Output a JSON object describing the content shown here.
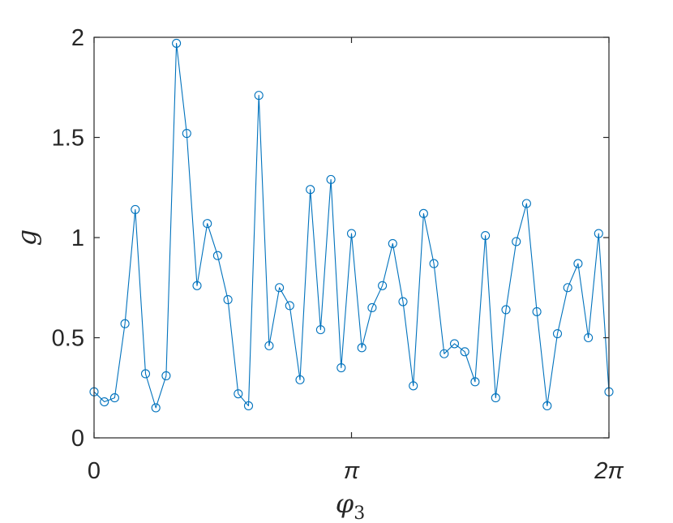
{
  "chart_data": {
    "type": "line",
    "marker": "circle",
    "color": "#0072BD",
    "xlabel": "φ",
    "xlabel_subscript": "3",
    "ylabel": "g",
    "xlim": [
      0,
      6.283185307
    ],
    "ylim": [
      0,
      2
    ],
    "xticks": [
      {
        "value": 0,
        "label": "0"
      },
      {
        "value": 3.141592654,
        "label": "π"
      },
      {
        "value": 6.283185307,
        "label": "2π"
      }
    ],
    "yticks": [
      {
        "value": 0,
        "label": "0"
      },
      {
        "value": 0.5,
        "label": "0.5"
      },
      {
        "value": 1,
        "label": "1"
      },
      {
        "value": 1.5,
        "label": "1.5"
      },
      {
        "value": 2,
        "label": "2"
      }
    ],
    "grid": false,
    "box": true,
    "series": [
      {
        "x": [
          0.0,
          0.1257,
          0.2513,
          0.377,
          0.5027,
          0.6283,
          0.754,
          0.8796,
          1.0053,
          1.131,
          1.2566,
          1.3823,
          1.508,
          1.6336,
          1.7593,
          1.885,
          2.0106,
          2.1363,
          2.2619,
          2.3876,
          2.5133,
          2.6389,
          2.7646,
          2.8903,
          3.0159,
          3.1416,
          3.2673,
          3.3929,
          3.5186,
          3.6442,
          3.7699,
          3.8956,
          4.0212,
          4.1469,
          4.2726,
          4.3982,
          4.5239,
          4.6496,
          4.7752,
          4.9009,
          5.0265,
          5.1522,
          5.2779,
          5.4035,
          5.5292,
          5.6549,
          5.7805,
          5.9062,
          6.0319,
          6.1575,
          6.2832
        ],
        "y": [
          0.23,
          0.18,
          0.2,
          0.57,
          1.14,
          0.32,
          0.15,
          0.31,
          1.97,
          1.52,
          0.76,
          1.07,
          0.91,
          0.69,
          0.22,
          0.16,
          1.71,
          0.46,
          0.75,
          0.66,
          0.29,
          1.24,
          0.54,
          1.29,
          0.35,
          1.02,
          0.45,
          0.65,
          0.76,
          0.97,
          0.68,
          0.26,
          1.12,
          0.87,
          0.42,
          0.47,
          0.43,
          0.28,
          1.01,
          0.2,
          0.64,
          0.98,
          1.17,
          0.63,
          0.16,
          0.52,
          0.75,
          0.87,
          0.5,
          1.02,
          0.23
        ]
      }
    ]
  }
}
